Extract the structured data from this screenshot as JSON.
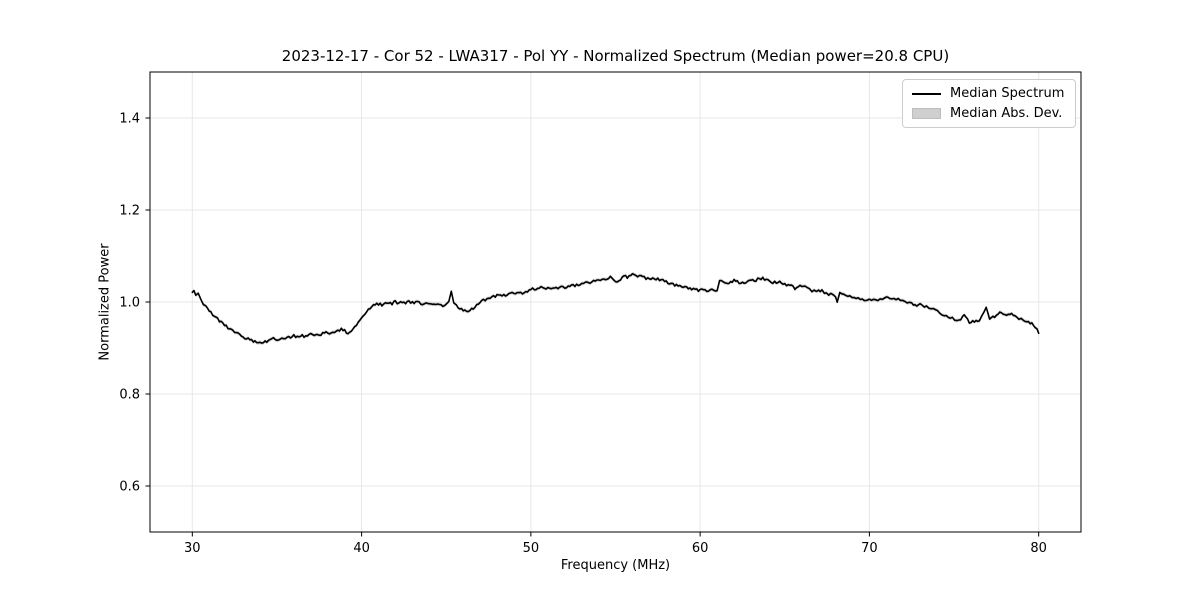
{
  "chart_data": {
    "type": "line",
    "title": "2023-12-17 - Cor 52 - LWA317 - Pol YY - Normalized Spectrum (Median power=20.8 CPU)",
    "xlabel": "Frequency (MHz)",
    "ylabel": "Normalized Power",
    "xlim": [
      27.5,
      82.5
    ],
    "ylim": [
      0.5,
      1.5
    ],
    "x_ticks": [
      30,
      40,
      50,
      60,
      70,
      80
    ],
    "y_ticks": [
      0.6,
      0.8,
      1.0,
      1.2,
      1.4
    ],
    "grid": true,
    "legend_position": "upper right",
    "colors": {
      "line": "#000000",
      "band": "#c9c9c9",
      "grid": "#e7e7e9",
      "spine": "#000000",
      "tick": "#000000"
    },
    "noise_amplitude": 0.003,
    "band": {
      "name": "Median Abs. Dev.",
      "color": "#c9c9c9",
      "half_width": 0.004
    },
    "series": [
      {
        "name": "Median Spectrum",
        "type": "line",
        "color": "#000000",
        "points": [
          [
            30.0,
            1.021
          ],
          [
            30.1,
            1.027
          ],
          [
            30.2,
            1.014
          ],
          [
            30.35,
            1.021
          ],
          [
            30.5,
            1.007
          ],
          [
            30.65,
            0.997
          ],
          [
            30.8,
            0.991
          ],
          [
            31.0,
            0.982
          ],
          [
            31.2,
            0.974
          ],
          [
            31.4,
            0.966
          ],
          [
            31.6,
            0.958
          ],
          [
            31.8,
            0.953
          ],
          [
            32.0,
            0.947
          ],
          [
            32.2,
            0.942
          ],
          [
            32.4,
            0.938
          ],
          [
            32.6,
            0.933
          ],
          [
            32.8,
            0.928
          ],
          [
            33.0,
            0.924
          ],
          [
            33.2,
            0.92
          ],
          [
            33.4,
            0.918
          ],
          [
            33.6,
            0.915
          ],
          [
            33.8,
            0.913
          ],
          [
            34.0,
            0.911
          ],
          [
            34.2,
            0.913
          ],
          [
            34.4,
            0.912
          ],
          [
            34.6,
            0.916
          ],
          [
            34.8,
            0.92
          ],
          [
            35.0,
            0.918
          ],
          [
            35.2,
            0.922
          ],
          [
            35.4,
            0.921
          ],
          [
            35.6,
            0.924
          ],
          [
            35.8,
            0.923
          ],
          [
            36.0,
            0.926
          ],
          [
            36.2,
            0.925
          ],
          [
            36.4,
            0.927
          ],
          [
            36.6,
            0.926
          ],
          [
            36.8,
            0.928
          ],
          [
            37.0,
            0.929
          ],
          [
            37.2,
            0.928
          ],
          [
            37.4,
            0.931
          ],
          [
            37.6,
            0.93
          ],
          [
            37.8,
            0.932
          ],
          [
            38.0,
            0.934
          ],
          [
            38.2,
            0.933
          ],
          [
            38.4,
            0.936
          ],
          [
            38.6,
            0.936
          ],
          [
            38.8,
            0.941
          ],
          [
            39.0,
            0.937
          ],
          [
            39.2,
            0.933
          ],
          [
            39.4,
            0.937
          ],
          [
            39.6,
            0.946
          ],
          [
            39.8,
            0.956
          ],
          [
            40.0,
            0.966
          ],
          [
            40.2,
            0.976
          ],
          [
            40.4,
            0.985
          ],
          [
            40.6,
            0.99
          ],
          [
            40.8,
            0.993
          ],
          [
            41.0,
            0.996
          ],
          [
            41.2,
            0.994
          ],
          [
            41.4,
            0.998
          ],
          [
            41.6,
            1.0
          ],
          [
            41.8,
            0.997
          ],
          [
            42.0,
            1.0
          ],
          [
            42.2,
            0.998
          ],
          [
            42.4,
            1.001
          ],
          [
            42.6,
            0.999
          ],
          [
            42.8,
            1.0
          ],
          [
            43.0,
            0.998
          ],
          [
            43.2,
            1.0
          ],
          [
            43.4,
            0.998
          ],
          [
            43.6,
            0.997
          ],
          [
            43.8,
            0.995
          ],
          [
            44.0,
            0.997
          ],
          [
            44.2,
            0.995
          ],
          [
            44.4,
            0.993
          ],
          [
            44.6,
            0.994
          ],
          [
            44.8,
            0.991
          ],
          [
            45.0,
            0.994
          ],
          [
            45.15,
            0.998
          ],
          [
            45.3,
            1.024
          ],
          [
            45.45,
            0.997
          ],
          [
            45.6,
            0.991
          ],
          [
            45.8,
            0.986
          ],
          [
            46.0,
            0.983
          ],
          [
            46.2,
            0.979
          ],
          [
            46.4,
            0.981
          ],
          [
            46.6,
            0.987
          ],
          [
            46.8,
            0.994
          ],
          [
            47.0,
            1.001
          ],
          [
            47.3,
            1.005
          ],
          [
            47.6,
            1.009
          ],
          [
            47.9,
            1.013
          ],
          [
            48.2,
            1.016
          ],
          [
            48.5,
            1.012
          ],
          [
            48.8,
            1.018
          ],
          [
            49.1,
            1.021
          ],
          [
            49.4,
            1.018
          ],
          [
            49.7,
            1.023
          ],
          [
            50.0,
            1.028
          ],
          [
            50.3,
            1.029
          ],
          [
            50.6,
            1.031
          ],
          [
            50.9,
            1.028
          ],
          [
            51.2,
            1.031
          ],
          [
            51.5,
            1.029
          ],
          [
            51.8,
            1.032
          ],
          [
            52.1,
            1.033
          ],
          [
            52.4,
            1.035
          ],
          [
            52.7,
            1.036
          ],
          [
            53.0,
            1.039
          ],
          [
            53.3,
            1.041
          ],
          [
            53.6,
            1.043
          ],
          [
            53.9,
            1.046
          ],
          [
            54.2,
            1.048
          ],
          [
            54.5,
            1.052
          ],
          [
            54.7,
            1.055
          ],
          [
            55.0,
            1.047
          ],
          [
            55.2,
            1.045
          ],
          [
            55.5,
            1.056
          ],
          [
            55.8,
            1.054
          ],
          [
            56.0,
            1.061
          ],
          [
            56.2,
            1.059
          ],
          [
            56.5,
            1.055
          ],
          [
            56.8,
            1.051
          ],
          [
            57.0,
            1.05
          ],
          [
            57.3,
            1.053
          ],
          [
            57.5,
            1.049
          ],
          [
            57.8,
            1.046
          ],
          [
            58.0,
            1.043
          ],
          [
            58.3,
            1.04
          ],
          [
            58.6,
            1.036
          ],
          [
            58.9,
            1.033
          ],
          [
            59.2,
            1.03
          ],
          [
            59.5,
            1.028
          ],
          [
            59.8,
            1.026
          ],
          [
            60.1,
            1.026
          ],
          [
            60.4,
            1.024
          ],
          [
            60.7,
            1.025
          ],
          [
            61.0,
            1.026
          ],
          [
            61.15,
            1.047
          ],
          [
            61.4,
            1.041
          ],
          [
            61.7,
            1.039
          ],
          [
            61.9,
            1.045
          ],
          [
            62.0,
            1.05
          ],
          [
            62.3,
            1.043
          ],
          [
            62.6,
            1.041
          ],
          [
            62.9,
            1.046
          ],
          [
            63.2,
            1.046
          ],
          [
            63.5,
            1.051
          ],
          [
            63.7,
            1.052
          ],
          [
            63.9,
            1.048
          ],
          [
            64.2,
            1.043
          ],
          [
            64.5,
            1.042
          ],
          [
            64.8,
            1.043
          ],
          [
            65.1,
            1.038
          ],
          [
            65.4,
            1.034
          ],
          [
            65.6,
            1.03
          ],
          [
            65.9,
            1.036
          ],
          [
            66.2,
            1.032
          ],
          [
            66.6,
            1.024
          ],
          [
            67.0,
            1.026
          ],
          [
            67.2,
            1.024
          ],
          [
            67.6,
            1.017
          ],
          [
            67.9,
            1.015
          ],
          [
            68.1,
            1.002
          ],
          [
            68.25,
            1.021
          ],
          [
            68.6,
            1.013
          ],
          [
            69.1,
            1.011
          ],
          [
            69.7,
            1.006
          ],
          [
            70.0,
            1.004
          ],
          [
            70.5,
            1.002
          ],
          [
            70.9,
            1.009
          ],
          [
            71.2,
            1.008
          ],
          [
            71.7,
            1.006
          ],
          [
            72.1,
            1.0
          ],
          [
            72.5,
            0.996
          ],
          [
            72.8,
            0.989
          ],
          [
            73.0,
            0.994
          ],
          [
            73.5,
            0.987
          ],
          [
            73.9,
            0.981
          ],
          [
            74.3,
            0.974
          ],
          [
            74.9,
            0.965
          ],
          [
            75.3,
            0.959
          ],
          [
            75.6,
            0.97
          ],
          [
            75.9,
            0.957
          ],
          [
            76.2,
            0.957
          ],
          [
            76.5,
            0.96
          ],
          [
            76.9,
            0.99
          ],
          [
            77.1,
            0.963
          ],
          [
            77.4,
            0.968
          ],
          [
            77.7,
            0.978
          ],
          [
            78.0,
            0.97
          ],
          [
            78.2,
            0.975
          ],
          [
            78.4,
            0.974
          ],
          [
            78.7,
            0.968
          ],
          [
            79.1,
            0.959
          ],
          [
            79.4,
            0.957
          ],
          [
            79.7,
            0.95
          ],
          [
            79.9,
            0.941
          ],
          [
            80.0,
            0.932
          ]
        ]
      }
    ]
  }
}
